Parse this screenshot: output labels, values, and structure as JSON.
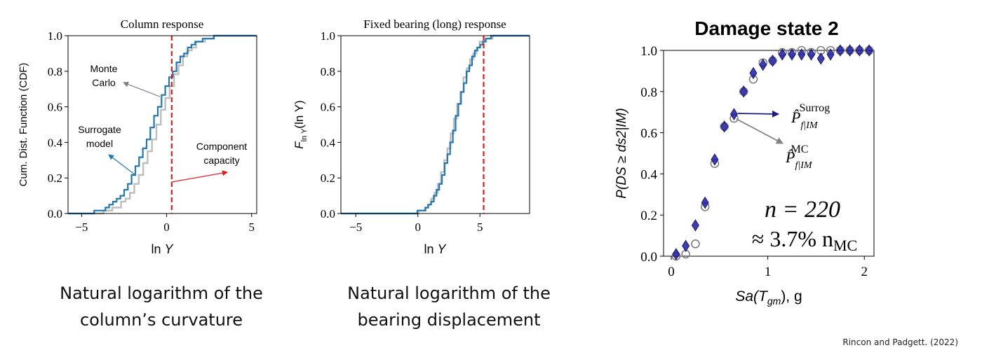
{
  "chart_data": [
    {
      "type": "line",
      "title": "Column response",
      "xlabel": "ln Y",
      "ylabel": "Cum. Dist. Function (CDF)",
      "xlim": [
        -5.8,
        5.3
      ],
      "ylim": [
        0.0,
        1.0
      ],
      "xticks": [
        "−5",
        "0",
        "5"
      ],
      "yticks": [
        "0.0",
        "0.2",
        "0.4",
        "0.6",
        "0.8",
        "1.0"
      ],
      "series": [
        {
          "name": "Surrogate model",
          "color": "#1f77b4",
          "cdf_mean": -0.9,
          "cdf_sd": 1.45
        },
        {
          "name": "Monte Carlo",
          "color": "#bdbdbd",
          "cdf_mean": -0.6,
          "cdf_sd": 1.35
        }
      ],
      "threshold": {
        "name": "Component capacity",
        "x": 0.3,
        "color": "#e41a1c"
      },
      "annotations": [
        "Monte Carlo",
        "Surrogate model",
        "Component capacity"
      ],
      "grid": false
    },
    {
      "type": "line",
      "title": "Fixed bearing (long) response",
      "xlabel": "ln Y",
      "ylabel": "F_lnY(ln Y)",
      "xlim": [
        -6.2,
        9.0
      ],
      "ylim": [
        0.0,
        1.0
      ],
      "xticks": [
        "−5",
        "0",
        "5"
      ],
      "yticks": [
        "0.0",
        "0.2",
        "0.4",
        "0.6",
        "0.8",
        "1.0"
      ],
      "series": [
        {
          "name": "Surrogate",
          "color": "#1f77b4",
          "cdf_mean": 2.9,
          "cdf_sd": 1.25
        },
        {
          "name": "Monte Carlo",
          "color": "#bdbdbd",
          "cdf_mean": 2.8,
          "cdf_sd": 1.25
        }
      ],
      "threshold": {
        "x": 5.3,
        "color": "#e41a1c"
      },
      "grid": false
    },
    {
      "type": "scatter",
      "title": "Damage state 2",
      "xlabel": "Sa(T_gm), g",
      "ylabel": "P(DS ≥ ds2|IM)",
      "xlim": [
        -0.08,
        2.1
      ],
      "ylim": [
        0.0,
        1.0
      ],
      "xticks": [
        "0",
        "1",
        "2"
      ],
      "yticks": [
        "0.0",
        "0.2",
        "0.4",
        "0.6",
        "0.8",
        "1.0"
      ],
      "series": [
        {
          "name": "P̂ f|IM Surrog",
          "marker": "diamond",
          "color": "#1a1aa8",
          "x": [
            0.05,
            0.15,
            0.25,
            0.35,
            0.45,
            0.55,
            0.65,
            0.75,
            0.85,
            0.95,
            1.05,
            1.15,
            1.25,
            1.35,
            1.45,
            1.55,
            1.65,
            1.75,
            1.85,
            1.95,
            2.05
          ],
          "y": [
            0.01,
            0.05,
            0.15,
            0.26,
            0.47,
            0.63,
            0.69,
            0.8,
            0.89,
            0.93,
            0.95,
            0.98,
            0.98,
            0.98,
            0.98,
            0.96,
            0.98,
            1.0,
            1.0,
            1.0,
            1.0
          ]
        },
        {
          "name": "P̂ f|IM MC",
          "marker": "circle",
          "color": "#7f7f7f",
          "x": [
            0.05,
            0.15,
            0.25,
            0.35,
            0.45,
            0.55,
            0.65,
            0.75,
            0.85,
            0.95,
            1.05,
            1.15,
            1.25,
            1.35,
            1.45,
            1.55,
            1.65,
            1.75,
            1.85,
            1.95,
            2.05
          ],
          "y": [
            0.0,
            0.01,
            0.06,
            0.24,
            0.45,
            0.63,
            0.67,
            0.8,
            0.86,
            0.94,
            0.95,
            0.99,
            0.99,
            1.0,
            0.99,
            1.0,
            1.0,
            1.0,
            1.0,
            1.0,
            1.0
          ]
        }
      ],
      "annotations": [
        "n = 220",
        "≈ 3.7% n_MC"
      ],
      "grid": false
    }
  ],
  "text": {
    "chart1_title": "Column response",
    "chart1_xlabel_ln": "ln",
    "chart1_xlabel_y": "Y",
    "chart1_ylabel": "Cum. Dist. Function (CDF)",
    "ann_mc_1": "Monte",
    "ann_mc_2": "Carlo",
    "ann_sur_1": "Surrogate",
    "ann_sur_2": "model",
    "ann_cap_1": "Component",
    "ann_cap_2": "capacity",
    "chart2_title": "Fixed bearing (long) response",
    "chart2_xlabel_ln": "ln",
    "chart2_xlabel_y": "Y",
    "chart2_ylabel_F": "F",
    "chart2_ylabel_sub": "ln Y",
    "chart2_ylabel_arg": "(ln Y)",
    "chart3_title": "Damage state 2",
    "chart3_xlabel": "Sa(T",
    "chart3_xlabel_sub": "gm",
    "chart3_xlabel_end": "), g",
    "chart3_ylabel": "P(DS ≥ ds2|IM)",
    "leg_surrog_p": "P̂",
    "leg_surrog_sub": "f|IM",
    "leg_surrog_sup": "Surrog",
    "leg_mc_p": "P̂",
    "leg_mc_sub": "f|IM",
    "leg_mc_sup": "MC",
    "ann_n": "n = 220",
    "ann_pct": "≈ 3.7% n",
    "ann_pct_sub": "MC"
  },
  "captions": {
    "left_1": "Natural logarithm of the",
    "left_2": "column’s curvature",
    "middle_1": "Natural logarithm of the",
    "middle_2": "bearing displacement"
  },
  "citation": "Rincon and Padgett. (2022)"
}
